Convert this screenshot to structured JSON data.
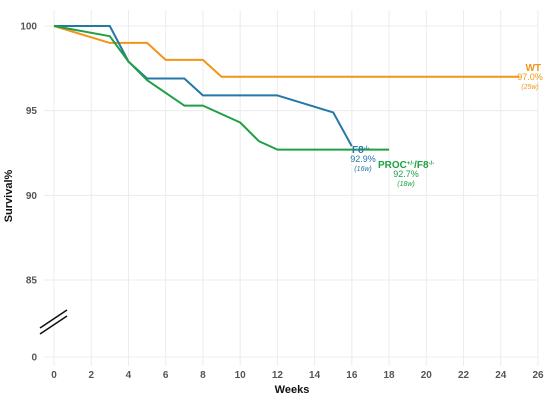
{
  "chart_data": {
    "type": "line",
    "xlabel": "Weeks",
    "ylabel": "Survival%",
    "x_ticks": [
      0,
      2,
      4,
      6,
      8,
      10,
      12,
      14,
      16,
      18,
      20,
      22,
      24,
      26
    ],
    "y_ticks": [
      "0",
      "85",
      "90",
      "95",
      "100"
    ],
    "xlim": [
      0,
      26
    ],
    "ylim_upper": [
      82,
      100
    ],
    "axis_break": true,
    "grid": true,
    "series": [
      {
        "name": "WT",
        "name_sup": "",
        "final_value": "97.0%",
        "duration": "(25w)",
        "color": "#f39419",
        "points": [
          [
            0,
            100
          ],
          [
            3,
            99
          ],
          [
            5,
            99
          ],
          [
            6,
            98
          ],
          [
            8,
            98
          ],
          [
            9,
            97
          ],
          [
            25,
            97
          ]
        ]
      },
      {
        "name": "F8",
        "name_sup": "-/-",
        "final_value": "92.9%",
        "duration": "(16w)",
        "color": "#2577a8",
        "points": [
          [
            0,
            100
          ],
          [
            3,
            100
          ],
          [
            4,
            97.9
          ],
          [
            5,
            96.9
          ],
          [
            7,
            96.9
          ],
          [
            8,
            95.9
          ],
          [
            12,
            95.9
          ],
          [
            15,
            94.9
          ],
          [
            16,
            92.9
          ]
        ]
      },
      {
        "name": "PROC",
        "name_sup": "+/-",
        "name2": "/F8",
        "name2_sup": "-/-",
        "final_value": "92.7%",
        "duration": "(18w)",
        "color": "#1fa043",
        "points": [
          [
            0,
            100
          ],
          [
            3,
            99.4
          ],
          [
            4,
            97.9
          ],
          [
            5,
            96.8
          ],
          [
            7,
            95.3
          ],
          [
            8,
            95.3
          ],
          [
            10,
            94.3
          ],
          [
            11,
            93.2
          ],
          [
            12,
            92.7
          ],
          [
            18,
            92.7
          ]
        ]
      }
    ]
  }
}
